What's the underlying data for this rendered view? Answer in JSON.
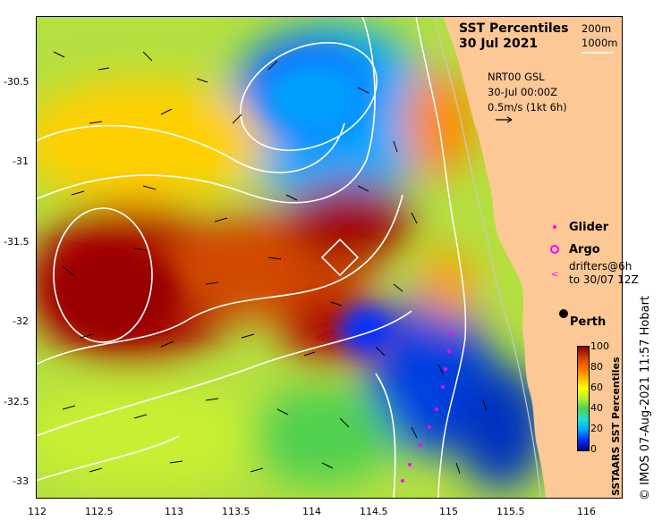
{
  "map": {
    "title": "SST Percentiles",
    "date": "30 Jul 2021",
    "depth_contours": [
      "200m",
      "1000m"
    ],
    "current_product": "NRT00 GSL",
    "current_time": "30-Jul 00:00Z",
    "vector_scale": "0.5m/s (1kt 6h)",
    "legend": {
      "glider": "Glider",
      "argo": "Argo",
      "drifters": [
        "drifters@6h",
        "to 30/07 12Z"
      ]
    },
    "city": "Perth",
    "colorbar_title": "SSTAARS SST Percentiles",
    "colorbar_ticks": [
      "100",
      "80",
      "60",
      "40",
      "20",
      "0"
    ],
    "credit": "© IMOS 07-Aug-2021 11:57 Hobart",
    "x_ticks": [
      "112",
      "112.5",
      "113",
      "113.5",
      "114",
      "114.5",
      "115",
      "115.5",
      "116"
    ],
    "y_ticks": [
      "-30.5",
      "-31",
      "-31.5",
      "-32",
      "-32.5",
      "-33"
    ],
    "colors": {
      "land": "#fcc896",
      "palette": [
        "#00007f",
        "#0030ff",
        "#00a8ff",
        "#20e0d0",
        "#50d050",
        "#b4f030",
        "#ffff00",
        "#ffb400",
        "#ff6a00",
        "#d24800",
        "#8b0000"
      ]
    }
  }
}
